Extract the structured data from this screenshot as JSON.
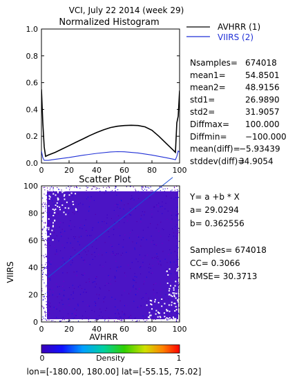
{
  "page": {
    "header": "VCI,  July 22 2014 (week 29)",
    "footer": "lon=[-180.00, 180.00] lat=[-55.15, 75.02]"
  },
  "colors": {
    "avhrr": "#000000",
    "viirs": "#1f2fd6",
    "density_low": "#4000c0",
    "fit_line": "#1a4fd8"
  },
  "histogram": {
    "title": "Normalized Histogram",
    "legend": [
      {
        "label": "AVHRR (1)",
        "color": "#000000"
      },
      {
        "label": "VIIRS (2)",
        "color": "#1f2fd6"
      }
    ],
    "stats": [
      {
        "label": "Nsamples=",
        "value": "674018"
      },
      {
        "label": "mean1=",
        "value": "54.8501"
      },
      {
        "label": "mean2=",
        "value": "48.9156"
      },
      {
        "label": "std1=",
        "value": "26.9890"
      },
      {
        "label": "std2=",
        "value": "31.9057"
      },
      {
        "label": "Diffmax=",
        "value": "100.000"
      },
      {
        "label": "Diffmin=",
        "value": "−100.000"
      },
      {
        "label": "mean(diff)=",
        "value": "−5.93439"
      },
      {
        "label": "stddev(diff)=",
        "value": "34.9054"
      }
    ]
  },
  "scatter": {
    "title": "Scatter Plot",
    "xlabel": "AVHRR",
    "ylabel": "VIIRS",
    "fit_lines": [
      {
        "text": "Y= a +b * X"
      },
      {
        "text": "a= 29.0294"
      },
      {
        "text": "b= 0.362556"
      },
      {
        "text": ""
      },
      {
        "text": "Samples= 674018"
      },
      {
        "text": "CC=  0.3066"
      },
      {
        "text": "RMSE= 30.3713"
      }
    ]
  },
  "colorbar": {
    "label": "Density",
    "min_label": "0",
    "max_label": "1"
  },
  "chart_data": [
    {
      "type": "line",
      "title": "Normalized Histogram",
      "xlim": [
        0,
        100
      ],
      "ylim": [
        0,
        1.0
      ],
      "x_ticks": [
        0,
        20,
        40,
        60,
        80,
        100
      ],
      "y_ticks": [
        0.0,
        0.2,
        0.4,
        0.6,
        0.8,
        1.0
      ],
      "x_tick_labels": [
        "0",
        "20",
        "40",
        "60",
        "80",
        "100"
      ],
      "y_tick_labels": [
        "0.0",
        "0.2",
        "0.4",
        "0.6",
        "0.8",
        "1.0"
      ],
      "series": [
        {
          "name": "AVHRR (1)",
          "x": [
            0,
            1,
            2,
            3,
            5,
            10,
            15,
            20,
            25,
            30,
            35,
            40,
            45,
            50,
            55,
            60,
            65,
            70,
            75,
            80,
            85,
            90,
            95,
            97,
            98,
            99,
            100
          ],
          "y": [
            0.55,
            0.3,
            0.12,
            0.05,
            0.06,
            0.08,
            0.105,
            0.13,
            0.155,
            0.18,
            0.205,
            0.228,
            0.248,
            0.265,
            0.275,
            0.28,
            0.282,
            0.28,
            0.27,
            0.245,
            0.2,
            0.15,
            0.1,
            0.08,
            0.3,
            0.35,
            0.54
          ]
        },
        {
          "name": "VIIRS (2)",
          "x": [
            0,
            1,
            2,
            3,
            5,
            10,
            20,
            30,
            40,
            50,
            55,
            60,
            70,
            80,
            90,
            95,
            97,
            98,
            99,
            100
          ],
          "y": [
            0.09,
            0.04,
            0.02,
            0.02,
            0.02,
            0.028,
            0.042,
            0.058,
            0.072,
            0.083,
            0.085,
            0.084,
            0.075,
            0.06,
            0.04,
            0.03,
            0.025,
            0.05,
            0.09,
            0.08
          ]
        }
      ],
      "grid": false
    },
    {
      "type": "scatter",
      "title": "Scatter Plot",
      "xlabel": "AVHRR",
      "ylabel": "VIIRS",
      "xlim": [
        0,
        100
      ],
      "ylim": [
        0,
        100
      ],
      "x_ticks": [
        0,
        20,
        40,
        60,
        80,
        100
      ],
      "y_ticks": [
        0,
        20,
        40,
        60,
        80,
        100
      ],
      "x_tick_labels": [
        "0",
        "20",
        "40",
        "60",
        "80",
        "100"
      ],
      "y_tick_labels": [
        "0",
        "20",
        "40",
        "60",
        "80",
        "100"
      ],
      "fit": {
        "a": 29.0294,
        "b": 0.362556,
        "x_range": [
          5,
          95
        ]
      },
      "samples": 674018,
      "cc": 0.3066,
      "rmse": 30.3713,
      "colorbar": {
        "min": 0,
        "max": 1,
        "label": "Density"
      }
    }
  ]
}
